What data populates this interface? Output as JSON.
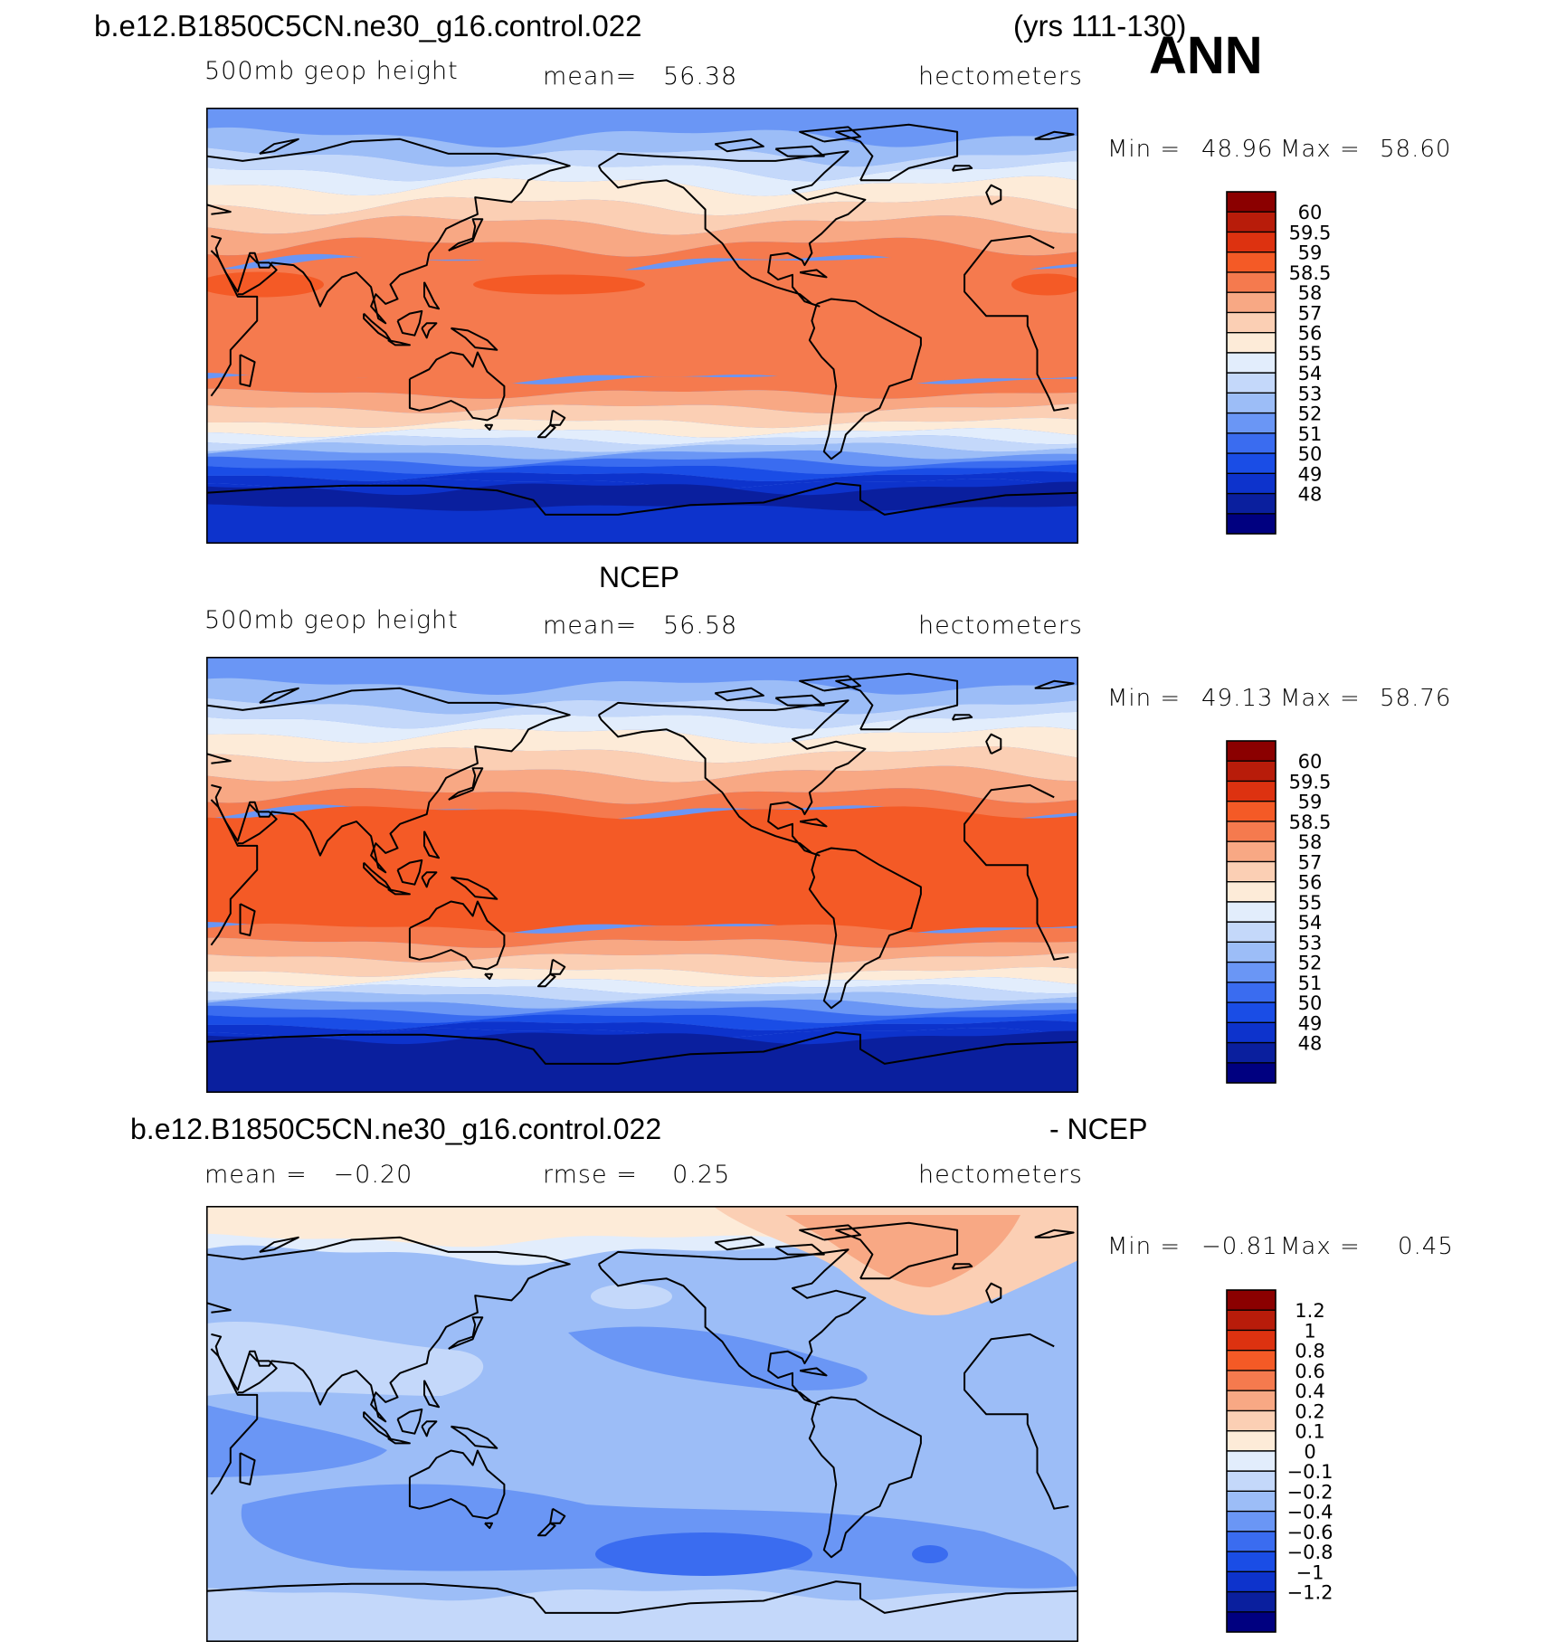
{
  "header": {
    "case_name": "b.e12.B1850C5CN.ne30_g16.control.022",
    "years": "(yrs 111-130)",
    "season": "ANN"
  },
  "panels": [
    {
      "title": "",
      "left_label": "500mb geop height",
      "mid_label": "mean=   56.38",
      "units": "hectometers",
      "min_label": "Min =",
      "min_value": "48.96",
      "max_label": "Max =",
      "max_value": "58.60"
    },
    {
      "title": "NCEP",
      "left_label": "500mb geop height",
      "mid_label": "mean=   56.58",
      "units": "hectometers",
      "min_label": "Min =",
      "min_value": "49.13",
      "max_label": "Max =",
      "max_value": "58.76"
    },
    {
      "title_left": "b.e12.B1850C5CN.ne30_g16.control.022",
      "title_right": "- NCEP",
      "left_label": "mean =   −0.20",
      "mid_label": "rmse =    0.25",
      "units": "hectometers",
      "min_label": "Min =",
      "min_value": "−0.81",
      "max_label": "Max =",
      "max_value": "0.45"
    }
  ],
  "chart_data": [
    {
      "type": "heatmap",
      "title": "b.e12.B1850C5CN.ne30_g16.control.022 (yrs 111-130) ANN",
      "variable": "500mb geop height",
      "units": "hectometers",
      "mean": 56.38,
      "min": 48.96,
      "max": 58.6,
      "levels": [
        48,
        49,
        50,
        51,
        52,
        53,
        54,
        55,
        56,
        57,
        58,
        58.5,
        59,
        59.5,
        60
      ],
      "colorbar_labels": [
        "60",
        "59.5",
        "59",
        "58.5",
        "58",
        "57",
        "56",
        "55",
        "54",
        "53",
        "52",
        "51",
        "50",
        "49",
        "48"
      ],
      "colors": [
        "#000080",
        "#0a1f9e",
        "#0d33cc",
        "#1a4de6",
        "#3a6cf0",
        "#6a96f5",
        "#9cbdf7",
        "#c4d8fa",
        "#e2edfc",
        "#fdebd8",
        "#fbcfb4",
        "#f8a884",
        "#f57a4e",
        "#f45a26",
        "#dd3210",
        "#b81c0a",
        "#8b0000"
      ]
    },
    {
      "type": "heatmap",
      "title": "NCEP",
      "variable": "500mb geop height",
      "units": "hectometers",
      "mean": 56.58,
      "min": 49.13,
      "max": 58.76,
      "levels": [
        48,
        49,
        50,
        51,
        52,
        53,
        54,
        55,
        56,
        57,
        58,
        58.5,
        59,
        59.5,
        60
      ],
      "colorbar_labels": [
        "60",
        "59.5",
        "59",
        "58.5",
        "58",
        "57",
        "56",
        "55",
        "54",
        "53",
        "52",
        "51",
        "50",
        "49",
        "48"
      ],
      "colors": [
        "#000080",
        "#0a1f9e",
        "#0d33cc",
        "#1a4de6",
        "#3a6cf0",
        "#6a96f5",
        "#9cbdf7",
        "#c4d8fa",
        "#e2edfc",
        "#fdebd8",
        "#fbcfb4",
        "#f8a884",
        "#f57a4e",
        "#f45a26",
        "#dd3210",
        "#b81c0a",
        "#8b0000"
      ]
    },
    {
      "type": "heatmap",
      "title": "b.e12.B1850C5CN.ne30_g16.control.022 - NCEP",
      "units": "hectometers",
      "mean": -0.2,
      "rmse": 0.25,
      "min": -0.81,
      "max": 0.45,
      "levels": [
        -1.2,
        -1,
        -0.8,
        -0.6,
        -0.4,
        -0.2,
        -0.1,
        0,
        0.1,
        0.2,
        0.4,
        0.6,
        0.8,
        1,
        1.2
      ],
      "colorbar_labels": [
        "1.2",
        "1",
        "0.8",
        "0.6",
        "0.4",
        "0.2",
        "0.1",
        "0",
        "−0.1",
        "−0.2",
        "−0.4",
        "−0.6",
        "−0.8",
        "−1",
        "−1.2"
      ],
      "colors": [
        "#000080",
        "#0a1f9e",
        "#0d33cc",
        "#1a4de6",
        "#3a6cf0",
        "#6a96f5",
        "#9cbdf7",
        "#c4d8fa",
        "#e2edfc",
        "#fdebd8",
        "#fbcfb4",
        "#f8a884",
        "#f57a4e",
        "#f45a26",
        "#dd3210",
        "#b81c0a",
        "#8b0000"
      ]
    }
  ]
}
